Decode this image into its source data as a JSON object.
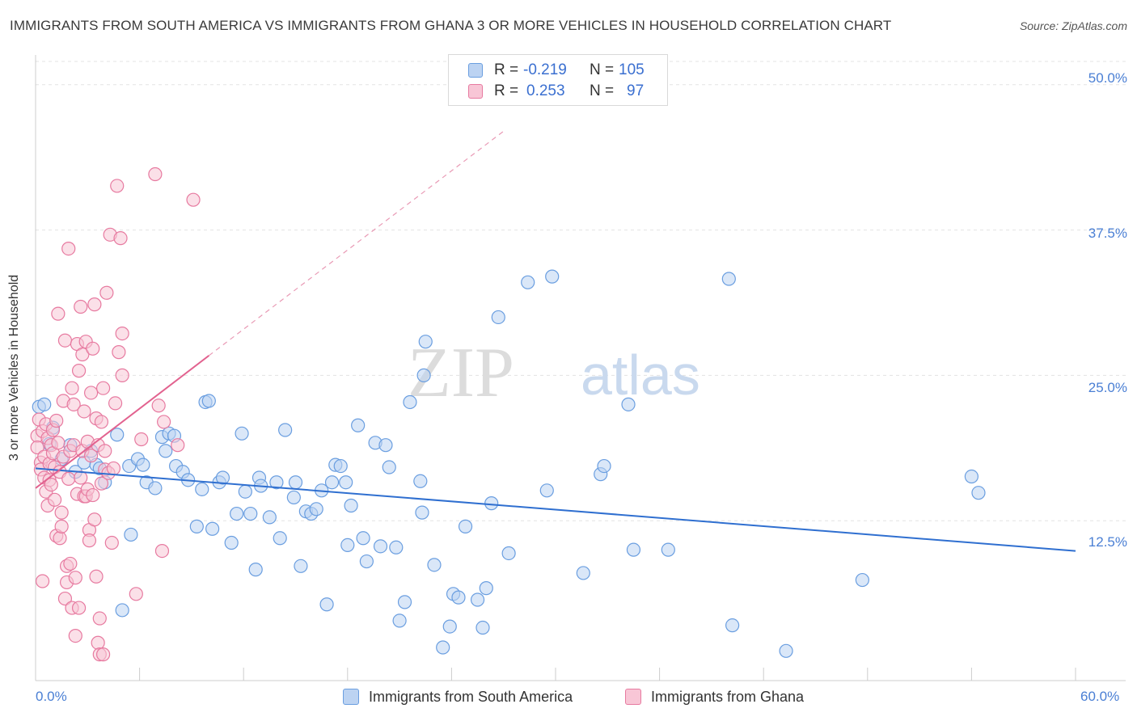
{
  "title": "IMMIGRANTS FROM SOUTH AMERICA VS IMMIGRANTS FROM GHANA 3 OR MORE VEHICLES IN HOUSEHOLD CORRELATION CHART",
  "source": "Source: ZipAtlas.com",
  "watermark": {
    "zip": "ZIP",
    "atlas": "atlas"
  },
  "legend_top": {
    "r_label": "R =",
    "n_label": "N =",
    "rows": [
      {
        "r": "-0.219",
        "n": "105"
      },
      {
        "r": "0.253",
        "n": "97"
      }
    ]
  },
  "chart_data": {
    "type": "scatter",
    "title": "IMMIGRANTS FROM SOUTH AMERICA VS IMMIGRANTS FROM GHANA 3 OR MORE VEHICLES IN HOUSEHOLD CORRELATION CHART",
    "xlabel": "",
    "ylabel": "3 or more Vehicles in Household",
    "xlim": [
      0,
      60
    ],
    "ylim": [
      0,
      52
    ],
    "x_tick_labels": [
      "0.0%",
      "60.0%"
    ],
    "y_ticks": [
      12.5,
      25.0,
      37.5,
      50.0
    ],
    "y_tick_labels": [
      "12.5%",
      "25.0%",
      "37.5%",
      "50.0%"
    ],
    "grid": true,
    "legend_position": "bottom",
    "series": [
      {
        "name": "Immigrants from South America",
        "color": "#6a9ee0",
        "fill": "#bcd3f2",
        "r": -0.219,
        "n": 105,
        "trend": {
          "x0": 0.0,
          "y0": 17.0,
          "x1": 60.0,
          "y1": 9.9
        },
        "points": [
          [
            0.2,
            22.3
          ],
          [
            0.5,
            22.5
          ],
          [
            0.8,
            19.1
          ],
          [
            1.0,
            20.5
          ],
          [
            1.5,
            17.8
          ],
          [
            2.0,
            19.0
          ],
          [
            2.3,
            16.7
          ],
          [
            2.8,
            17.5
          ],
          [
            3.2,
            18.5
          ],
          [
            3.5,
            17.3
          ],
          [
            3.7,
            17.0
          ],
          [
            4.0,
            15.8
          ],
          [
            4.7,
            19.9
          ],
          [
            5.0,
            4.8
          ],
          [
            5.4,
            17.2
          ],
          [
            5.5,
            11.3
          ],
          [
            5.9,
            17.8
          ],
          [
            6.2,
            17.3
          ],
          [
            6.4,
            15.8
          ],
          [
            6.9,
            15.3
          ],
          [
            7.3,
            19.7
          ],
          [
            7.5,
            18.5
          ],
          [
            7.7,
            20.0
          ],
          [
            8.0,
            19.8
          ],
          [
            8.1,
            17.2
          ],
          [
            8.5,
            16.7
          ],
          [
            8.8,
            16.0
          ],
          [
            9.3,
            12.0
          ],
          [
            9.6,
            15.2
          ],
          [
            9.8,
            22.7
          ],
          [
            10.0,
            22.8
          ],
          [
            10.2,
            11.8
          ],
          [
            10.6,
            15.8
          ],
          [
            10.8,
            16.2
          ],
          [
            11.3,
            10.6
          ],
          [
            11.6,
            13.1
          ],
          [
            11.9,
            20.0
          ],
          [
            12.1,
            15.0
          ],
          [
            12.4,
            13.1
          ],
          [
            12.7,
            8.3
          ],
          [
            12.9,
            16.2
          ],
          [
            13.0,
            15.5
          ],
          [
            13.5,
            12.8
          ],
          [
            13.9,
            15.8
          ],
          [
            14.1,
            11.0
          ],
          [
            14.4,
            20.3
          ],
          [
            14.9,
            14.5
          ],
          [
            15.0,
            15.8
          ],
          [
            15.3,
            8.6
          ],
          [
            15.6,
            13.3
          ],
          [
            15.9,
            13.1
          ],
          [
            16.2,
            13.5
          ],
          [
            16.5,
            15.1
          ],
          [
            16.8,
            5.3
          ],
          [
            17.1,
            15.8
          ],
          [
            17.3,
            17.3
          ],
          [
            17.6,
            17.2
          ],
          [
            17.9,
            15.8
          ],
          [
            18.0,
            10.4
          ],
          [
            18.2,
            13.8
          ],
          [
            18.6,
            20.7
          ],
          [
            18.9,
            11.0
          ],
          [
            19.1,
            9.0
          ],
          [
            19.6,
            19.2
          ],
          [
            19.9,
            10.3
          ],
          [
            20.2,
            19.0
          ],
          [
            20.4,
            17.1
          ],
          [
            20.8,
            10.2
          ],
          [
            21.0,
            3.9
          ],
          [
            21.3,
            5.5
          ],
          [
            21.6,
            22.7
          ],
          [
            22.2,
            15.9
          ],
          [
            22.3,
            13.2
          ],
          [
            23.0,
            8.7
          ],
          [
            22.5,
            27.9
          ],
          [
            22.4,
            25.0
          ],
          [
            23.5,
            1.6
          ],
          [
            23.9,
            3.4
          ],
          [
            24.1,
            6.2
          ],
          [
            24.4,
            5.9
          ],
          [
            24.8,
            12.0
          ],
          [
            25.5,
            5.7
          ],
          [
            25.8,
            3.3
          ],
          [
            26.0,
            6.7
          ],
          [
            26.3,
            14.0
          ],
          [
            26.7,
            30.0
          ],
          [
            27.3,
            9.7
          ],
          [
            28.4,
            33.0
          ],
          [
            29.5,
            15.1
          ],
          [
            29.8,
            33.5
          ],
          [
            31.6,
            8.0
          ],
          [
            32.6,
            16.5
          ],
          [
            32.8,
            17.2
          ],
          [
            34.2,
            22.5
          ],
          [
            34.5,
            10.0
          ],
          [
            36.5,
            10.0
          ],
          [
            40.0,
            33.3
          ],
          [
            40.2,
            3.5
          ],
          [
            43.3,
            1.3
          ],
          [
            47.7,
            7.4
          ],
          [
            54.0,
            16.3
          ],
          [
            54.4,
            14.9
          ]
        ]
      },
      {
        "name": "Immigrants from Ghana",
        "color": "#e77aa0",
        "fill": "#f8c6d6",
        "r": 0.253,
        "n": 97,
        "trend": {
          "x0": 0.0,
          "y0": 15.3,
          "x1": 10.0,
          "y1": 26.7
        },
        "trend_extension": {
          "x0": 10.0,
          "y0": 26.7,
          "x1": 27.0,
          "y1": 46.0
        },
        "points": [
          [
            0.1,
            19.8
          ],
          [
            0.1,
            18.8
          ],
          [
            0.2,
            21.2
          ],
          [
            0.3,
            17.5
          ],
          [
            0.3,
            16.9
          ],
          [
            0.4,
            20.2
          ],
          [
            0.4,
            7.3
          ],
          [
            0.5,
            18.0
          ],
          [
            0.5,
            16.2
          ],
          [
            0.6,
            20.8
          ],
          [
            0.6,
            15.0
          ],
          [
            0.7,
            19.6
          ],
          [
            0.7,
            13.8
          ],
          [
            0.8,
            17.4
          ],
          [
            0.8,
            16.0
          ],
          [
            0.9,
            19.0
          ],
          [
            0.9,
            15.6
          ],
          [
            1.0,
            20.3
          ],
          [
            1.0,
            18.3
          ],
          [
            1.1,
            17.1
          ],
          [
            1.1,
            14.3
          ],
          [
            1.2,
            21.1
          ],
          [
            1.2,
            11.2
          ],
          [
            1.3,
            30.3
          ],
          [
            1.3,
            19.2
          ],
          [
            1.4,
            11.0
          ],
          [
            1.4,
            16.7
          ],
          [
            1.5,
            12.0
          ],
          [
            1.5,
            13.2
          ],
          [
            1.6,
            22.8
          ],
          [
            1.6,
            18.0
          ],
          [
            1.7,
            28.0
          ],
          [
            1.7,
            5.8
          ],
          [
            1.8,
            8.6
          ],
          [
            1.8,
            7.2
          ],
          [
            1.9,
            35.9
          ],
          [
            1.9,
            16.1
          ],
          [
            2.0,
            18.5
          ],
          [
            2.0,
            8.8
          ],
          [
            2.1,
            5.0
          ],
          [
            2.1,
            23.9
          ],
          [
            2.2,
            19.0
          ],
          [
            2.2,
            22.5
          ],
          [
            2.3,
            7.6
          ],
          [
            2.3,
            2.6
          ],
          [
            2.4,
            27.7
          ],
          [
            2.4,
            14.8
          ],
          [
            2.5,
            5.0
          ],
          [
            2.5,
            25.4
          ],
          [
            2.6,
            30.9
          ],
          [
            2.6,
            16.2
          ],
          [
            2.7,
            18.5
          ],
          [
            2.7,
            26.8
          ],
          [
            2.8,
            14.6
          ],
          [
            2.8,
            21.9
          ],
          [
            2.9,
            27.9
          ],
          [
            2.9,
            14.6
          ],
          [
            3.0,
            19.3
          ],
          [
            3.0,
            15.2
          ],
          [
            3.1,
            11.7
          ],
          [
            3.1,
            10.8
          ],
          [
            3.2,
            23.5
          ],
          [
            3.2,
            18.1
          ],
          [
            3.3,
            14.7
          ],
          [
            3.3,
            27.3
          ],
          [
            3.4,
            31.1
          ],
          [
            3.4,
            12.6
          ],
          [
            3.5,
            7.7
          ],
          [
            3.5,
            21.3
          ],
          [
            3.6,
            19.0
          ],
          [
            3.6,
            2.0
          ],
          [
            3.7,
            1.0
          ],
          [
            3.7,
            4.1
          ],
          [
            3.8,
            15.7
          ],
          [
            3.8,
            21.0
          ],
          [
            3.9,
            23.9
          ],
          [
            3.9,
            1.0
          ],
          [
            4.0,
            18.5
          ],
          [
            4.0,
            16.9
          ],
          [
            4.1,
            32.1
          ],
          [
            4.2,
            16.6
          ],
          [
            4.3,
            37.1
          ],
          [
            4.4,
            10.6
          ],
          [
            4.5,
            17.0
          ],
          [
            4.6,
            22.6
          ],
          [
            4.7,
            41.3
          ],
          [
            4.8,
            27.0
          ],
          [
            4.9,
            36.8
          ],
          [
            5.0,
            25.0
          ],
          [
            5.0,
            28.6
          ],
          [
            5.8,
            6.2
          ],
          [
            6.1,
            19.5
          ],
          [
            6.9,
            42.3
          ],
          [
            7.1,
            22.4
          ],
          [
            7.3,
            9.9
          ],
          [
            7.4,
            21.0
          ],
          [
            8.2,
            19.0
          ],
          [
            9.1,
            40.1
          ]
        ]
      }
    ]
  },
  "legend_bottom": [
    {
      "label": "Immigrants from South America"
    },
    {
      "label": "Immigrants from Ghana"
    }
  ]
}
